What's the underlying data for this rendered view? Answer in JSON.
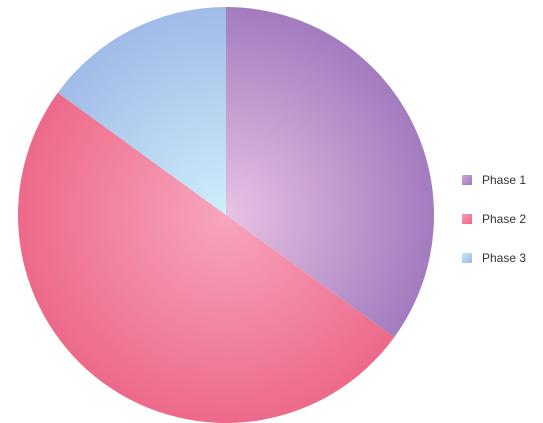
{
  "chart_data": {
    "type": "pie",
    "title": "",
    "legend_position": "right",
    "series": [
      {
        "name": "Phase 1",
        "value": 35,
        "color": "#b68ac9"
      },
      {
        "name": "Phase 2",
        "value": 50,
        "color": "#f07a98"
      },
      {
        "name": "Phase 3",
        "value": 15,
        "color": "#a9c8ee"
      }
    ]
  }
}
